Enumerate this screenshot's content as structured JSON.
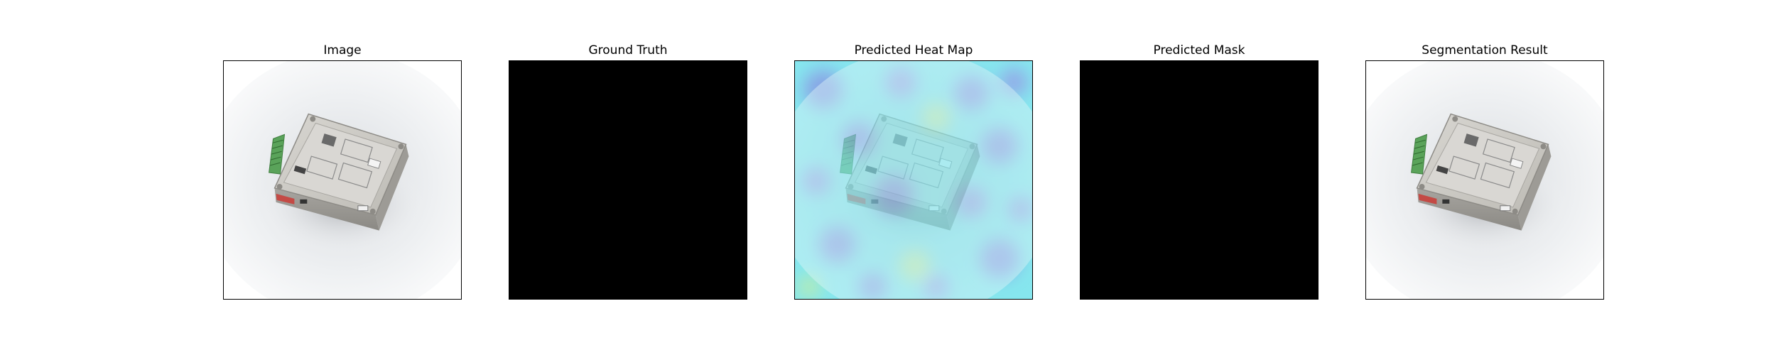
{
  "panels": [
    {
      "title": "Image",
      "kind": "photo"
    },
    {
      "title": "Ground Truth",
      "kind": "mask"
    },
    {
      "title": "Predicted Heat Map",
      "kind": "heatmap"
    },
    {
      "title": "Predicted Mask",
      "kind": "mask"
    },
    {
      "title": "Segmentation Result",
      "kind": "photo"
    }
  ],
  "colors": {
    "mask": "#000000",
    "heatmap_base": "#86e6ee",
    "heatmap_low": "#8a7fe0",
    "heatmap_high": "#d6ef8c",
    "device_body": "#c9c7c2",
    "connector": "#5aa35a",
    "accent_red": "#c44a45"
  }
}
